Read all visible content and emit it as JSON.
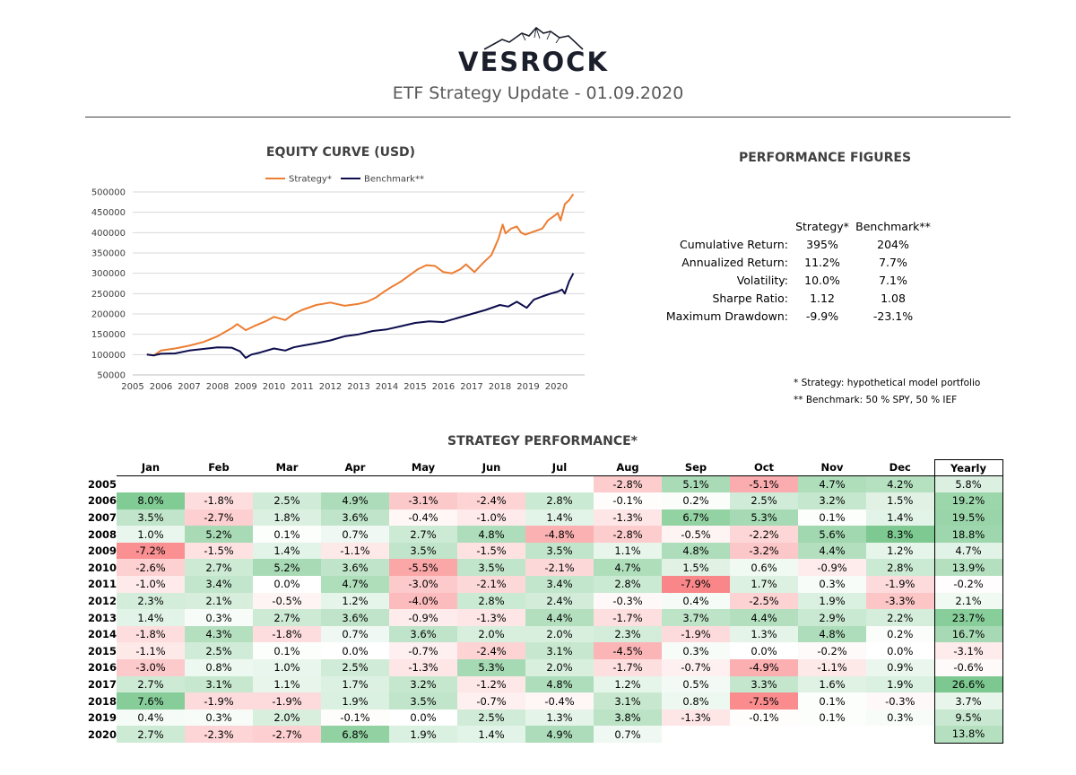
{
  "header": {
    "logo_text": "VESROCK",
    "report_title": "ETF Strategy Update - 01.09.2020"
  },
  "equity": {
    "title": "EQUITY CURVE (USD)"
  },
  "performance": {
    "title": "PERFORMANCE FIGURES",
    "col_strategy": "Strategy*",
    "col_benchmark": "Benchmark**",
    "rows": [
      {
        "label": "Cumulative Return:",
        "strategy": "395%",
        "benchmark": "204%"
      },
      {
        "label": "Annualized Return:",
        "strategy": "11.2%",
        "benchmark": "7.7%"
      },
      {
        "label": "Volatility:",
        "strategy": "10.0%",
        "benchmark": "7.1%"
      },
      {
        "label": "Sharpe Ratio:",
        "strategy": "1.12",
        "benchmark": "1.08"
      },
      {
        "label": "Maximum Drawdown:",
        "strategy": "-9.9%",
        "benchmark": "-23.1%"
      }
    ]
  },
  "footnotes": {
    "strategy": "* Strategy: hypothetical model portfolio",
    "benchmark": "** Benchmark: 50 % SPY, 50 % IEF"
  },
  "colors": {
    "strategy": "#ED7D31",
    "benchmark": "#0D0D4D",
    "positive": "#63BE7B",
    "negative": "#F8696B"
  },
  "chart_data": [
    {
      "type": "line",
      "title": "EQUITY CURVE (USD)",
      "xlabel": "",
      "ylabel": "",
      "xlim": [
        2005,
        2021
      ],
      "ylim": [
        50000,
        500000
      ],
      "x_ticks": [
        "2005",
        "2006",
        "2007",
        "2008",
        "2009",
        "2010",
        "2011",
        "2012",
        "2013",
        "2014",
        "2015",
        "2016",
        "2017",
        "2018",
        "2019",
        "2020"
      ],
      "y_ticks": [
        "50000",
        "100000",
        "150000",
        "200000",
        "250000",
        "300000",
        "350000",
        "400000",
        "450000",
        "500000"
      ],
      "legend": "top",
      "grid": true,
      "series": [
        {
          "name": "Strategy*",
          "points": [
            [
              2005.5,
              100000
            ],
            [
              2005.75,
              98000
            ],
            [
              2006.0,
              110000
            ],
            [
              2006.5,
              115000
            ],
            [
              2007.0,
              122000
            ],
            [
              2007.5,
              131000
            ],
            [
              2008.0,
              145000
            ],
            [
              2008.5,
              165000
            ],
            [
              2008.7,
              175000
            ],
            [
              2009.0,
              160000
            ],
            [
              2009.3,
              170000
            ],
            [
              2009.7,
              182000
            ],
            [
              2010.0,
              193000
            ],
            [
              2010.4,
              185000
            ],
            [
              2010.7,
              200000
            ],
            [
              2011.0,
              210000
            ],
            [
              2011.5,
              222000
            ],
            [
              2012.0,
              228000
            ],
            [
              2012.5,
              220000
            ],
            [
              2013.0,
              225000
            ],
            [
              2013.3,
              230000
            ],
            [
              2013.6,
              240000
            ],
            [
              2013.9,
              255000
            ],
            [
              2014.2,
              268000
            ],
            [
              2014.5,
              280000
            ],
            [
              2014.8,
              295000
            ],
            [
              2015.1,
              310000
            ],
            [
              2015.4,
              320000
            ],
            [
              2015.7,
              318000
            ],
            [
              2016.0,
              303000
            ],
            [
              2016.3,
              300000
            ],
            [
              2016.6,
              310000
            ],
            [
              2016.8,
              322000
            ],
            [
              2017.1,
              303000
            ],
            [
              2017.4,
              325000
            ],
            [
              2017.7,
              345000
            ],
            [
              2017.95,
              385000
            ],
            [
              2018.1,
              420000
            ],
            [
              2018.2,
              398000
            ],
            [
              2018.4,
              410000
            ],
            [
              2018.6,
              415000
            ],
            [
              2018.75,
              400000
            ],
            [
              2018.9,
              395000
            ],
            [
              2019.1,
              400000
            ],
            [
              2019.3,
              405000
            ],
            [
              2019.5,
              410000
            ],
            [
              2019.7,
              430000
            ],
            [
              2019.9,
              440000
            ],
            [
              2020.05,
              448000
            ],
            [
              2020.15,
              430000
            ],
            [
              2020.3,
              470000
            ],
            [
              2020.45,
              480000
            ],
            [
              2020.6,
              495000
            ]
          ]
        },
        {
          "name": "Benchmark**",
          "points": [
            [
              2005.5,
              100000
            ],
            [
              2005.75,
              98000
            ],
            [
              2006.0,
              102000
            ],
            [
              2006.5,
              103000
            ],
            [
              2007.0,
              110000
            ],
            [
              2007.5,
              114000
            ],
            [
              2008.0,
              118000
            ],
            [
              2008.5,
              117000
            ],
            [
              2008.8,
              108000
            ],
            [
              2009.0,
              92000
            ],
            [
              2009.2,
              100000
            ],
            [
              2009.5,
              105000
            ],
            [
              2010.0,
              115000
            ],
            [
              2010.4,
              110000
            ],
            [
              2010.7,
              118000
            ],
            [
              2011.0,
              122000
            ],
            [
              2011.5,
              128000
            ],
            [
              2012.0,
              135000
            ],
            [
              2012.5,
              145000
            ],
            [
              2013.0,
              150000
            ],
            [
              2013.5,
              158000
            ],
            [
              2014.0,
              162000
            ],
            [
              2014.5,
              170000
            ],
            [
              2015.0,
              178000
            ],
            [
              2015.5,
              182000
            ],
            [
              2016.0,
              180000
            ],
            [
              2016.5,
              190000
            ],
            [
              2017.0,
              200000
            ],
            [
              2017.5,
              210000
            ],
            [
              2018.0,
              222000
            ],
            [
              2018.3,
              218000
            ],
            [
              2018.6,
              230000
            ],
            [
              2018.95,
              215000
            ],
            [
              2019.2,
              235000
            ],
            [
              2019.5,
              243000
            ],
            [
              2019.8,
              250000
            ],
            [
              2020.05,
              255000
            ],
            [
              2020.2,
              260000
            ],
            [
              2020.3,
              250000
            ],
            [
              2020.45,
              280000
            ],
            [
              2020.6,
              300000
            ]
          ]
        }
      ]
    },
    {
      "type": "heatmap",
      "title": "STRATEGY PERFORMANCE*",
      "columns": [
        "Jan",
        "Feb",
        "Mar",
        "Apr",
        "May",
        "Jun",
        "Jul",
        "Aug",
        "Sep",
        "Oct",
        "Nov",
        "Dec",
        "Yearly"
      ],
      "rows": [
        {
          "year": "2005",
          "values": [
            null,
            null,
            null,
            null,
            null,
            null,
            null,
            -2.8,
            5.1,
            -5.1,
            4.7,
            4.2,
            5.8
          ]
        },
        {
          "year": "2006",
          "values": [
            8.0,
            -1.8,
            2.5,
            4.9,
            -3.1,
            -2.4,
            2.8,
            -0.1,
            0.2,
            2.5,
            3.2,
            1.5,
            19.2
          ]
        },
        {
          "year": "2007",
          "values": [
            3.5,
            -2.7,
            1.8,
            3.6,
            -0.4,
            -1.0,
            1.4,
            -1.3,
            6.7,
            5.3,
            0.1,
            1.4,
            19.5
          ]
        },
        {
          "year": "2008",
          "values": [
            1.0,
            5.2,
            0.1,
            0.7,
            2.7,
            4.8,
            -4.8,
            -2.8,
            -0.5,
            -2.2,
            5.6,
            8.3,
            18.8
          ]
        },
        {
          "year": "2009",
          "values": [
            -7.2,
            -1.5,
            1.4,
            -1.1,
            3.5,
            -1.5,
            3.5,
            1.1,
            4.8,
            -3.2,
            4.4,
            1.2,
            4.7
          ]
        },
        {
          "year": "2010",
          "values": [
            -2.6,
            2.7,
            5.2,
            3.6,
            -5.5,
            3.5,
            -2.1,
            4.7,
            1.5,
            0.6,
            -0.9,
            2.8,
            13.9
          ]
        },
        {
          "year": "2011",
          "values": [
            -1.0,
            3.4,
            0.0,
            4.7,
            -3.0,
            -2.1,
            3.4,
            2.8,
            -7.9,
            1.7,
            0.3,
            -1.9,
            -0.2
          ]
        },
        {
          "year": "2012",
          "values": [
            2.3,
            2.1,
            -0.5,
            1.2,
            -4.0,
            2.8,
            2.4,
            -0.3,
            0.4,
            -2.5,
            1.9,
            -3.3,
            2.1
          ]
        },
        {
          "year": "2013",
          "values": [
            1.4,
            0.3,
            2.7,
            3.6,
            -0.9,
            -1.3,
            4.4,
            -1.7,
            3.7,
            4.4,
            2.9,
            2.2,
            23.7
          ]
        },
        {
          "year": "2014",
          "values": [
            -1.8,
            4.3,
            -1.8,
            0.7,
            3.6,
            2.0,
            2.0,
            2.3,
            -1.9,
            1.3,
            4.8,
            0.2,
            16.7
          ]
        },
        {
          "year": "2015",
          "values": [
            -1.1,
            2.5,
            0.1,
            0.0,
            -0.7,
            -2.4,
            3.1,
            -4.5,
            0.3,
            0.0,
            -0.2,
            0.0,
            -3.1
          ]
        },
        {
          "year": "2016",
          "values": [
            -3.0,
            0.8,
            1.0,
            2.5,
            -1.3,
            5.3,
            2.0,
            -1.7,
            -0.7,
            -4.9,
            -1.1,
            0.9,
            -0.6
          ]
        },
        {
          "year": "2017",
          "values": [
            2.7,
            3.1,
            1.1,
            1.7,
            3.2,
            -1.2,
            4.8,
            1.2,
            0.5,
            3.3,
            1.6,
            1.9,
            26.6
          ]
        },
        {
          "year": "2018",
          "values": [
            7.6,
            -1.9,
            -1.9,
            1.9,
            3.5,
            -0.7,
            -0.4,
            3.1,
            0.8,
            -7.5,
            0.1,
            -0.3,
            3.7
          ]
        },
        {
          "year": "2019",
          "values": [
            0.4,
            0.3,
            2.0,
            -0.1,
            0.0,
            2.5,
            1.3,
            3.8,
            -1.3,
            -0.1,
            0.1,
            0.3,
            9.5
          ]
        },
        {
          "year": "2020",
          "values": [
            2.7,
            -2.3,
            -2.7,
            6.8,
            1.9,
            1.4,
            4.9,
            0.7,
            null,
            null,
            null,
            null,
            13.8
          ]
        }
      ]
    }
  ]
}
